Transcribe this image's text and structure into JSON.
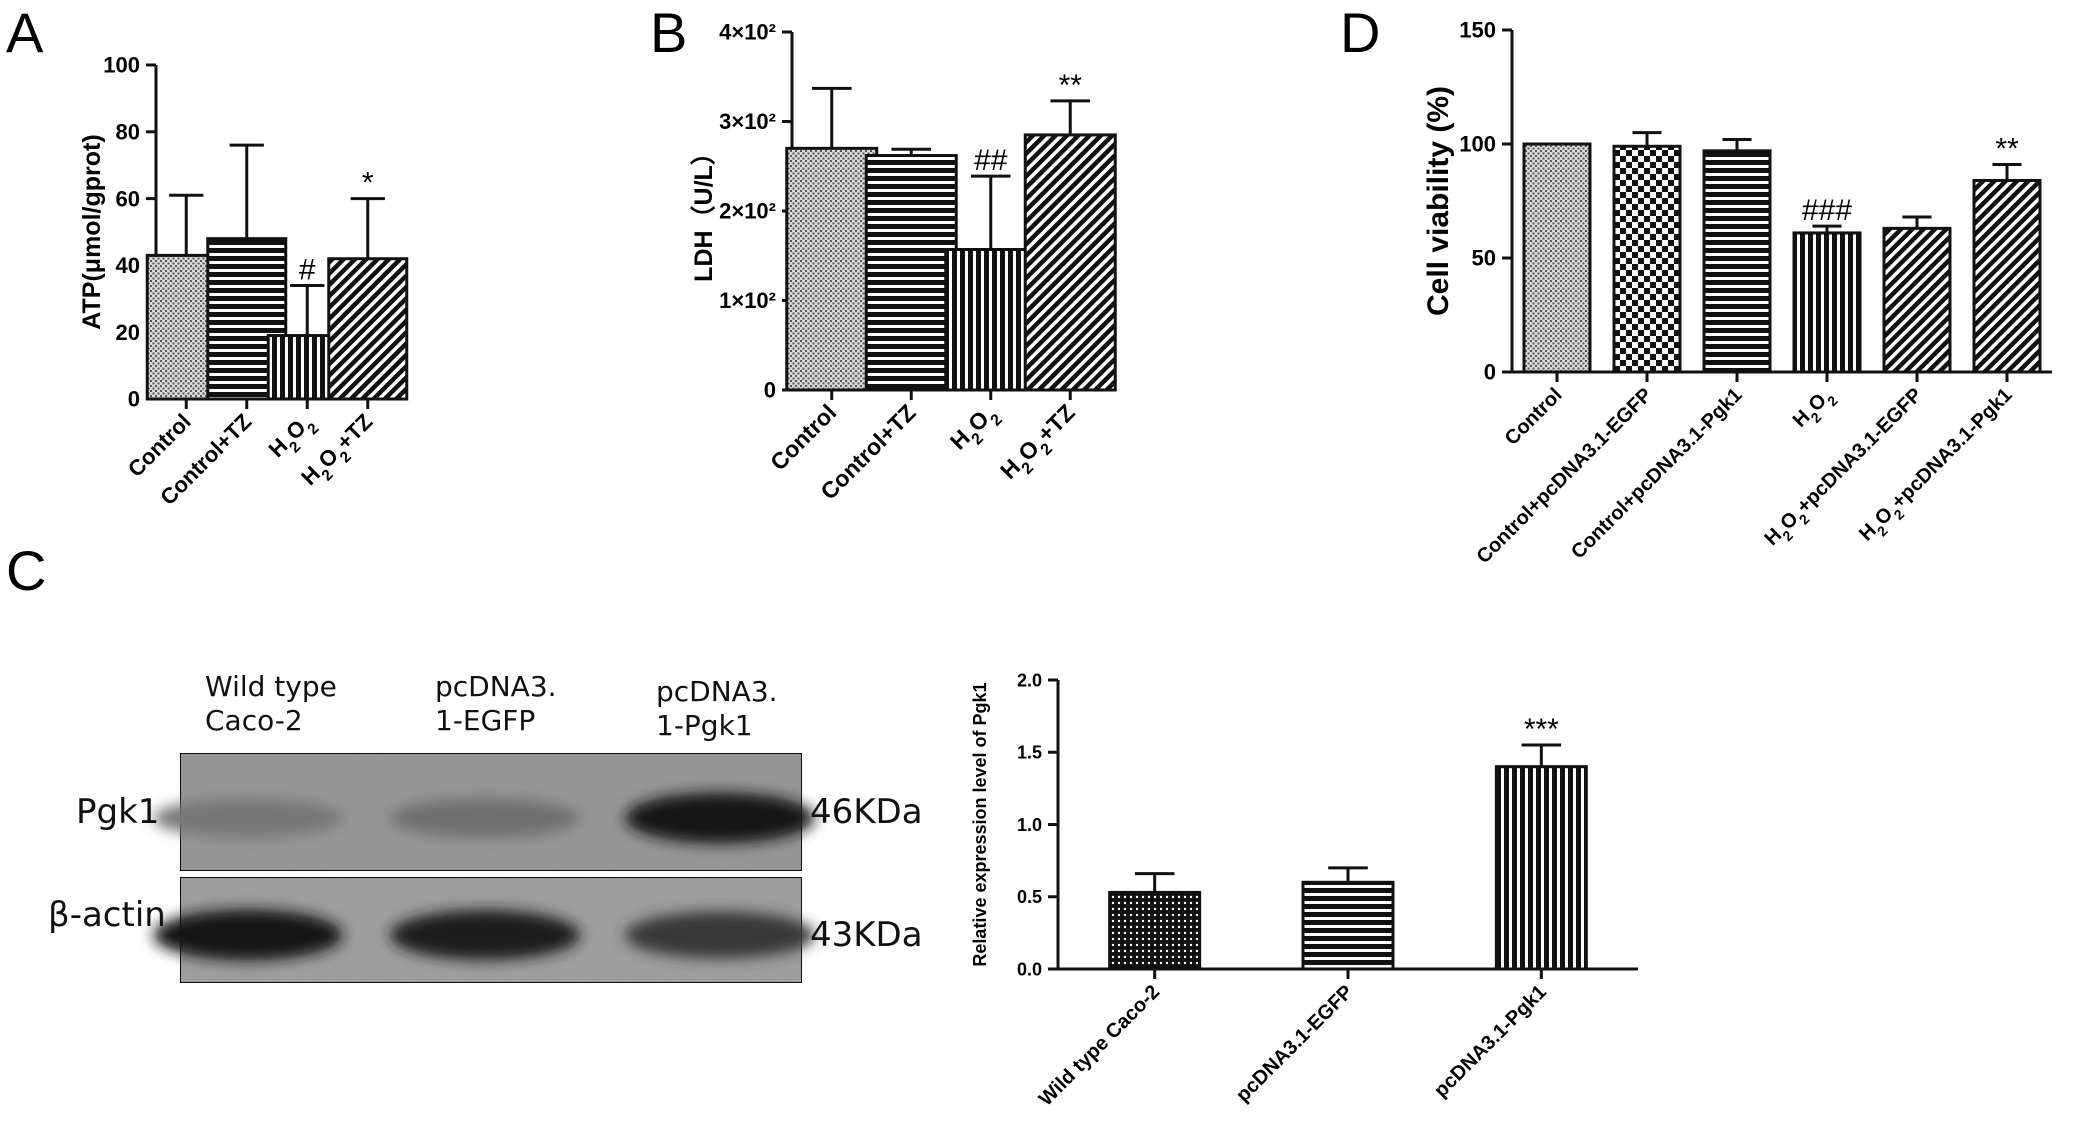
{
  "panel_letters": [
    "A",
    "B",
    "D",
    "C"
  ],
  "chart_data": [
    {
      "panel": "A",
      "type": "bar",
      "categories": [
        "Control",
        "Control+TZ",
        "H2O2",
        "H2O2+TZ"
      ],
      "values": [
        43,
        48,
        19,
        42
      ],
      "errors": [
        18,
        28,
        15,
        18
      ],
      "annotations": [
        "",
        "",
        "#",
        "*"
      ],
      "ylabel": "ATP(μmol/gprot)",
      "xlabel": "",
      "ylim": [
        0,
        100
      ],
      "yticks": [
        "0",
        "20",
        "40",
        "60",
        "80",
        "100"
      ],
      "patterns": [
        "check",
        "hstripe",
        "vstripe",
        "diag"
      ]
    },
    {
      "panel": "B",
      "type": "bar",
      "categories": [
        "Control",
        "Control+TZ",
        "H2O2",
        "H2O2+TZ"
      ],
      "values": [
        270,
        262,
        157,
        285
      ],
      "errors": [
        67,
        7,
        82,
        38
      ],
      "annotations": [
        "",
        "",
        "##",
        "**"
      ],
      "ylabel": "LDH（U/L）",
      "xlabel": "",
      "ylim": [
        0,
        400
      ],
      "yticks": [
        "0",
        "1×10²",
        "2×10²",
        "3×10²",
        "4×10²"
      ],
      "patterns": [
        "check",
        "hstripe",
        "vstripe",
        "diag"
      ]
    },
    {
      "panel": "D",
      "type": "bar",
      "categories": [
        "Control",
        "Control+pcDNA3.1-EGFP",
        "Control+pcDNA3.1-Pgk1",
        "H2O2",
        "H2O2+pcDNA3.1-EGFP",
        "H2O2+pcDNA3.1-Pgk1"
      ],
      "values": [
        100,
        99,
        97,
        61,
        63,
        84
      ],
      "errors": [
        0,
        6,
        5,
        3,
        5,
        7
      ],
      "annotations": [
        "",
        "",
        "",
        "###",
        "",
        "**"
      ],
      "ylabel": "Cell viability (%)",
      "xlabel": "",
      "ylim": [
        0,
        150
      ],
      "yticks": [
        "0",
        "50",
        "100",
        "150"
      ],
      "patterns": [
        "check",
        "checker",
        "hstripe",
        "vstripe",
        "diag",
        "diag"
      ]
    },
    {
      "panel": "C",
      "type": "bar",
      "categories": [
        "Wild type Caco-2",
        "pcDNA3.1-EGFP",
        "pcDNA3.1-Pgk1"
      ],
      "values": [
        0.53,
        0.6,
        1.4
      ],
      "errors": [
        0.13,
        0.1,
        0.15
      ],
      "annotations": [
        "",
        "",
        "***"
      ],
      "ylabel": "Relative expression level of Pgk1",
      "xlabel": "",
      "ylim": [
        0,
        2.0
      ],
      "yticks": [
        "0.0",
        "0.5",
        "1.0",
        "1.5",
        "2.0"
      ],
      "patterns": [
        "dots",
        "hstripe",
        "vstripe"
      ]
    }
  ],
  "blot": {
    "lanes": [
      "Wild type\nCaco-2",
      "pcDNA3.\n1-EGFP",
      "pcDNA3.\n1-Pgk1"
    ],
    "rows": [
      {
        "protein": "Pgk1",
        "size": "46KDa",
        "intensity": [
          0.35,
          0.4,
          0.95
        ]
      },
      {
        "protein": "β-actin",
        "size": "43KDa",
        "intensity": [
          0.95,
          0.9,
          0.75
        ]
      }
    ]
  }
}
